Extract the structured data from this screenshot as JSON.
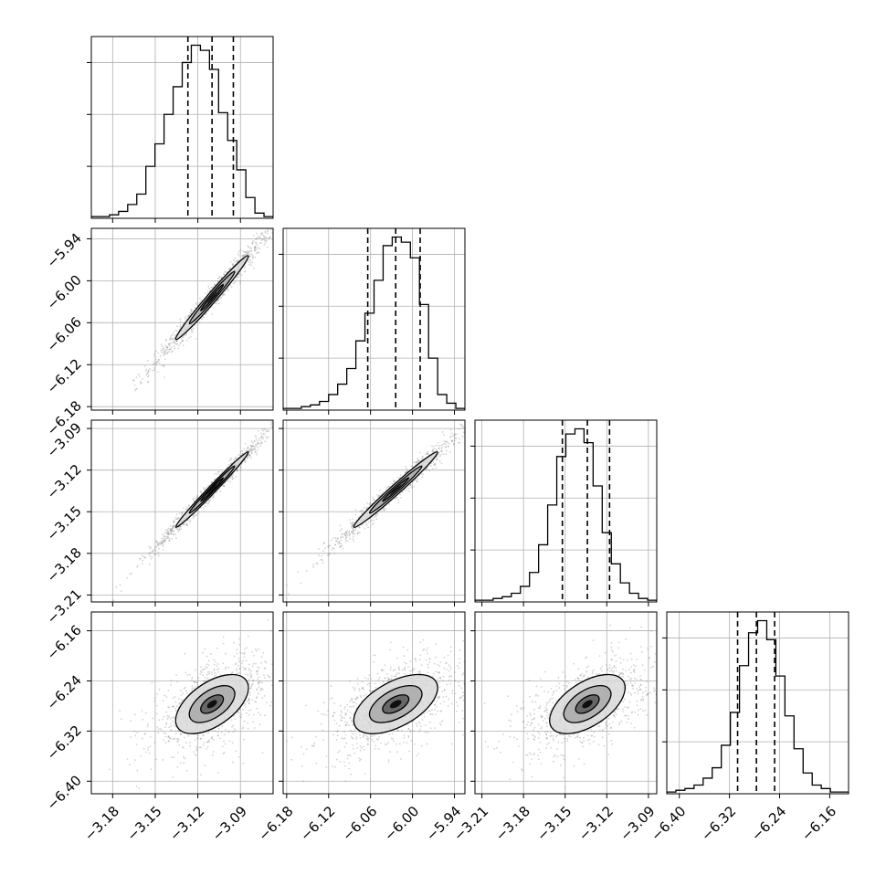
{
  "chart_data": {
    "type": "corner",
    "description_free": true,
    "grid": true,
    "colors": {
      "ink": "#000000",
      "grid": "#b0b0b0",
      "scatter": "#808080"
    },
    "params": [
      {
        "range": [
          -3.195,
          -3.067
        ],
        "ticks": [
          -3.18,
          -3.15,
          -3.12,
          -3.09
        ],
        "tick_labels": [
          "−3.18",
          "−3.15",
          "−3.12",
          "−3.09"
        ],
        "quantiles": [
          -3.127,
          -3.11,
          -3.095
        ],
        "hist_peak": 1.0,
        "hist": [
          0.01,
          0.01,
          0.02,
          0.04,
          0.08,
          0.14,
          0.3,
          0.43,
          0.6,
          0.76,
          0.9,
          1.0,
          0.97,
          0.86,
          0.61,
          0.45,
          0.28,
          0.12,
          0.03,
          0.01
        ]
      },
      {
        "range": [
          -6.185,
          -5.925
        ],
        "ticks": [
          -6.18,
          -6.12,
          -6.06,
          -6.0,
          -5.94
        ],
        "tick_labels": [
          "−6.18",
          "−6.12",
          "−6.06",
          "−6.00",
          "−5.94"
        ],
        "quantiles": [
          -6.064,
          -6.024,
          -5.989
        ],
        "hist_peak": 1.0,
        "hist": [
          0.01,
          0.01,
          0.02,
          0.03,
          0.05,
          0.09,
          0.15,
          0.24,
          0.4,
          0.56,
          0.75,
          0.95,
          1.0,
          0.97,
          0.88,
          0.61,
          0.3,
          0.09,
          0.04,
          0.01
        ]
      },
      {
        "range": [
          -3.215,
          -3.084
        ],
        "ticks": [
          -3.21,
          -3.18,
          -3.15,
          -3.12,
          -3.09
        ],
        "tick_labels": [
          "−3.21",
          "−3.18",
          "−3.15",
          "−3.12",
          "−3.09"
        ],
        "quantiles": [
          -3.152,
          -3.134,
          -3.118
        ],
        "hist_peak": 1.0,
        "hist": [
          0.01,
          0.01,
          0.02,
          0.03,
          0.05,
          0.09,
          0.17,
          0.33,
          0.56,
          0.84,
          0.97,
          1.0,
          0.92,
          0.67,
          0.4,
          0.22,
          0.11,
          0.05,
          0.02,
          0.01
        ]
      },
      {
        "range": [
          -6.42,
          -6.13
        ],
        "ticks": [
          -6.4,
          -6.32,
          -6.24,
          -6.16
        ],
        "tick_labels": [
          "−6.40",
          "−6.32",
          "−6.24",
          "−6.16"
        ],
        "quantiles": [
          -6.307,
          -6.277,
          -6.248
        ],
        "hist_peak": 1.0,
        "hist": [
          0.01,
          0.02,
          0.03,
          0.05,
          0.09,
          0.15,
          0.28,
          0.47,
          0.74,
          0.93,
          1.0,
          0.89,
          0.68,
          0.45,
          0.26,
          0.12,
          0.05,
          0.03,
          0.01,
          0.01
        ]
      }
    ],
    "pairs": [
      {
        "row": 1,
        "col": 0,
        "rho": 0.985,
        "contours": [
          0.5,
          1.0,
          1.6
        ]
      },
      {
        "row": 2,
        "col": 0,
        "rho": 0.99,
        "contours": [
          0.5,
          1.0,
          1.6
        ]
      },
      {
        "row": 2,
        "col": 1,
        "rho": 0.985,
        "contours": [
          0.5,
          1.0,
          1.6
        ]
      },
      {
        "row": 3,
        "col": 0,
        "rho": 0.55,
        "contours": [
          0.5,
          1.0,
          1.6
        ]
      },
      {
        "row": 3,
        "col": 1,
        "rho": 0.55,
        "contours": [
          0.5,
          1.0,
          1.6
        ]
      },
      {
        "row": 3,
        "col": 2,
        "rho": 0.55,
        "contours": [
          0.5,
          1.0,
          1.6
        ]
      }
    ]
  }
}
